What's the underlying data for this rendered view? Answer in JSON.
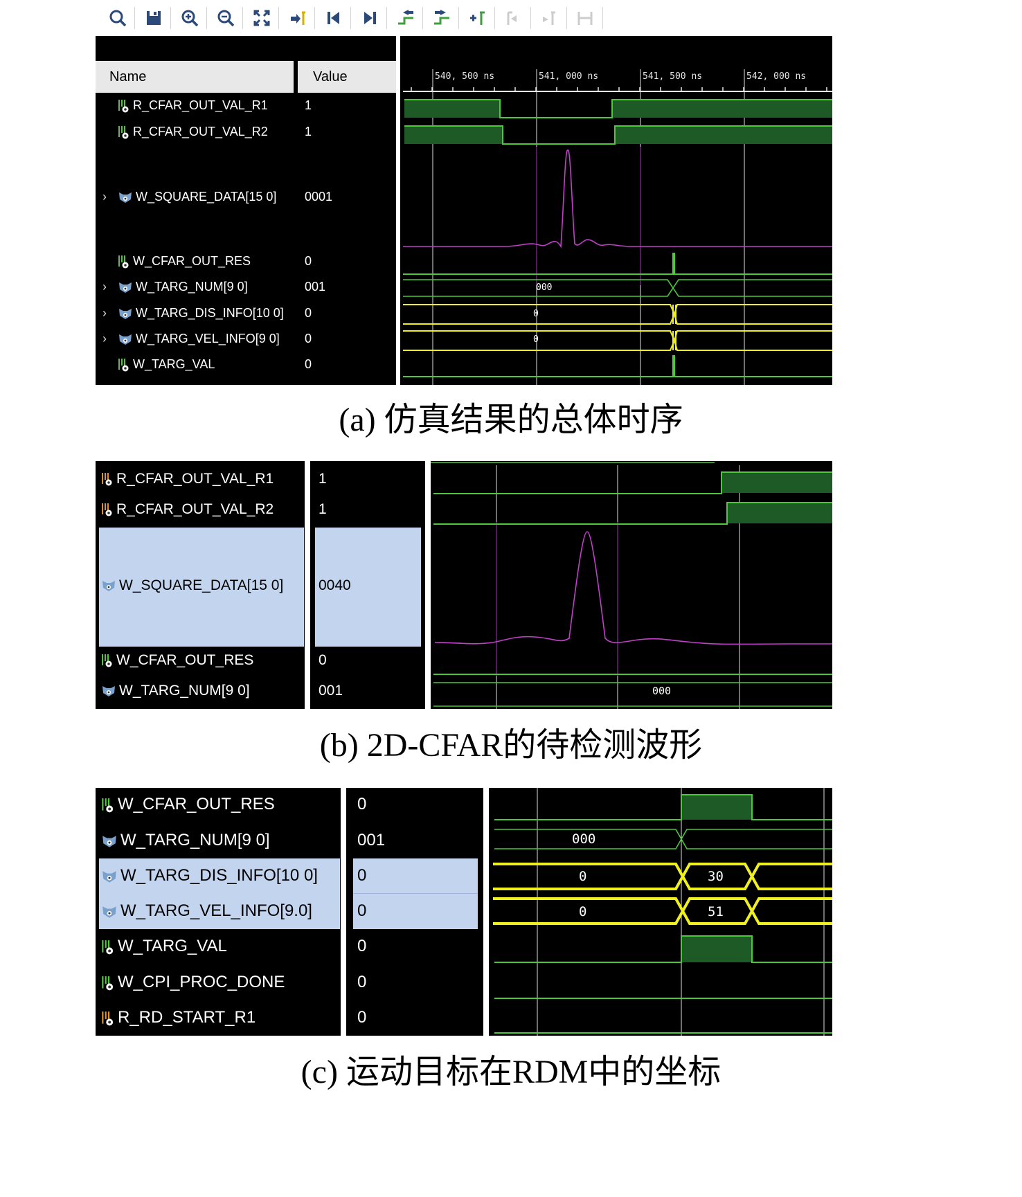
{
  "toolbar": {
    "icons": [
      "search-icon",
      "save-icon",
      "zoom-in-icon",
      "zoom-out-icon",
      "zoom-fit-icon",
      "go-to-cursor-icon",
      "go-to-start-icon",
      "go-to-end-icon",
      "previous-transition-icon",
      "next-transition-icon",
      "add-marker-icon",
      "previous-marker-icon",
      "next-marker-icon",
      "swap-cursors-icon"
    ]
  },
  "panel_a": {
    "name_header": "Name",
    "value_header": "Value",
    "time_labels": [
      "540, 500  ns",
      "541, 000  ns",
      "541, 500  ns",
      "542, 000  ns"
    ],
    "signals": [
      {
        "name": "R_CFAR_OUT_VAL_R1",
        "value": "1"
      },
      {
        "name": "R_CFAR_OUT_VAL_R2",
        "value": "1"
      },
      {
        "name": "W_SQUARE_DATA[15 0]",
        "value": "0001"
      },
      {
        "name": "W_CFAR_OUT_RES",
        "value": "0"
      },
      {
        "name": "W_TARG_NUM[9 0]",
        "value": "001"
      },
      {
        "name": "W_TARG_DIS_INFO[10 0]",
        "value": "0"
      },
      {
        "name": "W_TARG_VEL_INFO[9 0]",
        "value": "0"
      },
      {
        "name": "W_TARG_VAL",
        "value": "0"
      }
    ],
    "bus_labels": [
      "000",
      "0",
      "0"
    ]
  },
  "caption_a": "(a) 仿真结果的总体时序",
  "panel_b": {
    "signals": [
      {
        "name": "R_CFAR_OUT_VAL_R1",
        "value": "1"
      },
      {
        "name": "R_CFAR_OUT_VAL_R2",
        "value": "1"
      },
      {
        "name": "W_SQUARE_DATA[15 0]",
        "value": "0040"
      },
      {
        "name": "W_CFAR_OUT_RES",
        "value": "0"
      },
      {
        "name": "W_TARG_NUM[9 0]",
        "value": "001"
      }
    ],
    "bus_labels": [
      "000"
    ]
  },
  "caption_b": "(b) 2D-CFAR的待检测波形",
  "panel_c": {
    "signals": [
      {
        "name": "W_CFAR_OUT_RES",
        "value": "0"
      },
      {
        "name": "W_TARG_NUM[9 0]",
        "value": "001"
      },
      {
        "name": "W_TARG_DIS_INFO[10 0]",
        "value": "0"
      },
      {
        "name": "W_TARG_VEL_INFO[9.0]",
        "value": "0"
      },
      {
        "name": "W_TARG_VAL",
        "value": "0"
      },
      {
        "name": "W_CPI_PROC_DONE",
        "value": "0"
      },
      {
        "name": "R_RD_START_R1",
        "value": "0"
      }
    ],
    "bus_labels": [
      "000",
      "0",
      "30",
      "0",
      "51"
    ]
  },
  "caption_c": "(c) 运动目标在RDM中的坐标",
  "colors": {
    "wave_green": "#4ec73a",
    "wave_fill": "#1e5a26",
    "bus_yellow": "#f0f020",
    "analog_purple": "#c040c8",
    "cursor": "#e0e0e0",
    "select": "#c3d4ee"
  }
}
